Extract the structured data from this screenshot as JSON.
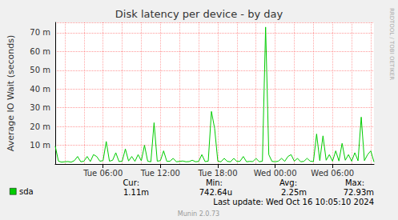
{
  "chart_data": {
    "type": "line",
    "title": "Disk latency per device - by day",
    "y_label": "Average IO Wait (seconds)",
    "categories": [
      null,
      null,
      null,
      null,
      null,
      null,
      null,
      null,
      null,
      null,
      null,
      null,
      null,
      null,
      null,
      "Tue 06:00",
      null,
      null,
      null,
      null,
      null,
      null,
      null,
      null,
      null,
      null,
      null,
      null,
      null,
      null,
      null,
      null,
      null,
      "Tue 12:00",
      null,
      null,
      null,
      null,
      null,
      null,
      null,
      null,
      null,
      null,
      null,
      null,
      null,
      null,
      null,
      null,
      null,
      "Tue 18:00",
      null,
      null,
      null,
      null,
      null,
      null,
      null,
      null,
      null,
      null,
      null,
      null,
      null,
      null,
      null,
      null,
      null,
      "Wed 00:00",
      null,
      null,
      null,
      null,
      null,
      null,
      null,
      null,
      null,
      null,
      null,
      null,
      null,
      null,
      null,
      null,
      null,
      "Wed 06:00",
      null,
      null,
      null,
      null,
      null,
      null,
      null,
      null,
      null,
      null,
      null,
      null,
      null
    ],
    "series": [
      {
        "name": "sda",
        "color": "#00cc00",
        "values": [
          0.0095,
          0.0015,
          0.001,
          0.0012,
          0.0013,
          0.001,
          0.0018,
          0.004,
          0.0012,
          0.0015,
          0.004,
          0.0013,
          0.005,
          0.004,
          0.0015,
          0.0018,
          0.012,
          0.0015,
          0.002,
          0.006,
          0.0013,
          0.0015,
          0.008,
          0.0016,
          0.004,
          0.0014,
          0.005,
          0.0017,
          0.01,
          0.0015,
          0.0012,
          0.022,
          0.0015,
          0.0018,
          0.007,
          0.0014,
          0.0015,
          0.003,
          0.0012,
          0.0014,
          0.0016,
          0.0012,
          0.0013,
          0.002,
          0.0012,
          0.0014,
          0.005,
          0.0013,
          0.0015,
          0.028,
          0.019,
          0.0015,
          0.0012,
          0.003,
          0.0014,
          0.0012,
          0.003,
          0.0013,
          0.0015,
          0.004,
          0.0012,
          0.0014,
          0.0013,
          0.003,
          0.0012,
          0.0015,
          0.073,
          0.005,
          0.0014,
          0.0012,
          0.0015,
          0.003,
          0.0014,
          0.004,
          0.005,
          0.0015,
          0.003,
          0.0012,
          0.0014,
          0.003,
          0.0015,
          0.0013,
          0.016,
          0.0018,
          0.015,
          0.002,
          0.005,
          0.0015,
          0.007,
          0.0016,
          0.011,
          0.002,
          0.005,
          0.0015,
          0.006,
          0.0017,
          0.025,
          0.0018,
          0.005,
          0.007,
          0.0011
        ]
      }
    ],
    "ylim": [
      0,
      0.0755
    ],
    "yticks": [
      {
        "value": 0.01,
        "label": "10 m"
      },
      {
        "value": 0.02,
        "label": "20 m"
      },
      {
        "value": 0.03,
        "label": "30 m"
      },
      {
        "value": 0.04,
        "label": "40 m"
      },
      {
        "value": 0.05,
        "label": "50 m"
      },
      {
        "value": 0.06,
        "label": "60 m"
      },
      {
        "value": 0.07,
        "label": "70 m"
      }
    ],
    "grid": true,
    "stats": [
      {
        "name": "Cur:",
        "label": "1.11m"
      },
      {
        "name": "Min:",
        "label": "742.64u"
      },
      {
        "name": "Avg:",
        "label": "2.25m"
      },
      {
        "name": "Max:",
        "label": "72.93m"
      }
    ],
    "last_update": "Last update: Wed Oct 16 10:05:10 2024",
    "footer": "Munin 2.0.73",
    "watermark": "RRDTOOL / TOBI OETIKER"
  }
}
